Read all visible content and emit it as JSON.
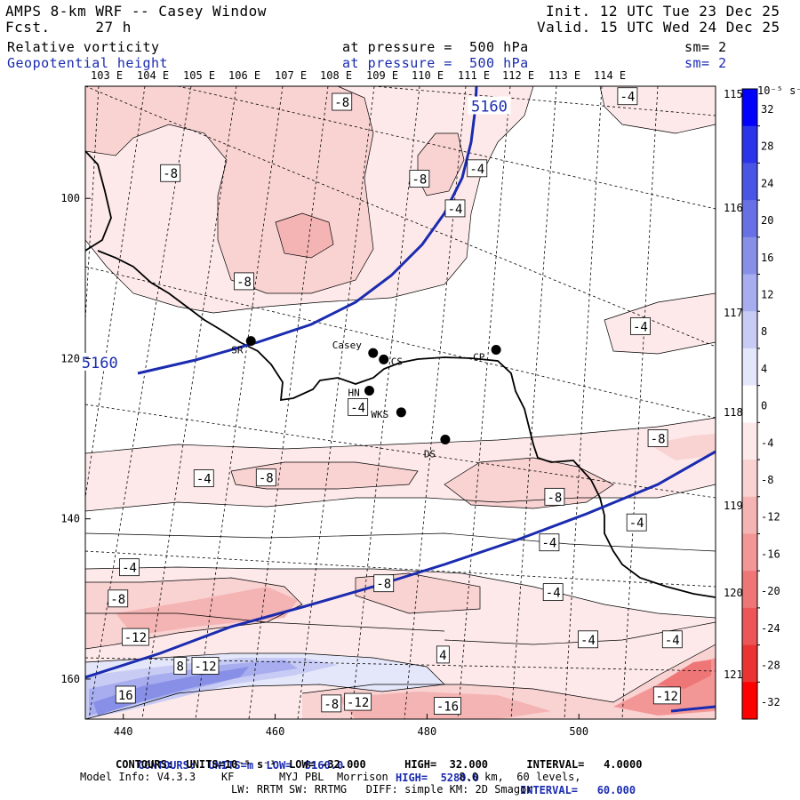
{
  "header": {
    "title": "AMPS 8-km WRF -- Casey Window",
    "forecast": "Fcst.     27 h",
    "init": "Init. 12 UTC Tue 23 Dec 25",
    "valid": "Valid. 15 UTC Wed 24 Dec 25",
    "field1_name": "Relative vorticity",
    "field1_level": "at pressure =  500 hPa",
    "field1_sm": "sm= 2",
    "field2_name": "Geopotential height",
    "field2_level": "at pressure =  500 hPa",
    "field2_sm": "sm= 2"
  },
  "longitude_labels": [
    "103 E",
    "104 E",
    "105 E",
    "106 E",
    "107 E",
    "108 E",
    "109 E",
    "110 E",
    "111 E",
    "112 E",
    "113 E",
    "114 E"
  ],
  "right_longitude_labels": [
    "115 E",
    "116 E",
    "117 E",
    "118 E",
    "119 E",
    "120 E",
    "121 E"
  ],
  "y_axis": {
    "ticks": [
      "100",
      "120",
      "140",
      "160"
    ],
    "range": [
      86,
      165
    ]
  },
  "x_axis": {
    "ticks": [
      "440",
      "460",
      "480",
      "500"
    ],
    "range": [
      435,
      518
    ]
  },
  "colorbar": {
    "unit_label": "10⁻⁵ s⁻¹",
    "ticks": [
      "32",
      "28",
      "24",
      "20",
      "16",
      "12",
      "8",
      "4",
      "0",
      "-4",
      "-8",
      "-12",
      "-16",
      "-20",
      "-24",
      "-28",
      "-32"
    ],
    "colors": [
      "#0000ff",
      "#2b34e8",
      "#4a55e6",
      "#6870e6",
      "#8790e6",
      "#a7adee",
      "#c8ccf4",
      "#e4e6fa",
      "#ffffff",
      "#fde9e9",
      "#f9d2d2",
      "#f5b4b4",
      "#f29696",
      "#ee7676",
      "#ec5656",
      "#ea3333",
      "#ff0000"
    ]
  },
  "stations": [
    {
      "name": "SR",
      "x": 456.8,
      "y": 117.8
    },
    {
      "name": "Casey",
      "x": 472.9,
      "y": 119.3
    },
    {
      "name": "CS",
      "x": 474.3,
      "y": 120.1
    },
    {
      "name": "CP",
      "x": 489.1,
      "y": 118.9
    },
    {
      "name": "HN",
      "x": 472.4,
      "y": 124.0
    },
    {
      "name": "WKS",
      "x": 476.6,
      "y": 126.7
    },
    {
      "name": "DS",
      "x": 482.4,
      "y": 130.1
    }
  ],
  "height_labels": [
    {
      "text": "5160",
      "x": 488.2,
      "y": 88.5
    },
    {
      "text": "5160",
      "x": 436.9,
      "y": 120.5
    }
  ],
  "vorticity_labels": [
    {
      "text": "-8",
      "x": 446.2,
      "y": 96.9
    },
    {
      "text": "-8",
      "x": 468.8,
      "y": 88.0
    },
    {
      "text": "-8",
      "x": 479.0,
      "y": 97.6
    },
    {
      "text": "-4",
      "x": 486.6,
      "y": 96.3
    },
    {
      "text": "-4",
      "x": 483.7,
      "y": 101.3
    },
    {
      "text": "-8",
      "x": 455.9,
      "y": 110.4
    },
    {
      "text": "-4",
      "x": 506.4,
      "y": 87.3
    },
    {
      "text": "-4",
      "x": 508.1,
      "y": 116.0
    },
    {
      "text": "-4",
      "x": 470.9,
      "y": 126.1
    },
    {
      "text": "-8",
      "x": 510.4,
      "y": 130.0
    },
    {
      "text": "-4",
      "x": 450.6,
      "y": 135.0
    },
    {
      "text": "-8",
      "x": 458.8,
      "y": 134.9
    },
    {
      "text": "-8",
      "x": 496.8,
      "y": 137.3
    },
    {
      "text": "-4",
      "x": 507.6,
      "y": 140.5
    },
    {
      "text": "-4",
      "x": 496.1,
      "y": 143.0
    },
    {
      "text": "-4",
      "x": 440.8,
      "y": 146.1
    },
    {
      "text": "-8",
      "x": 439.3,
      "y": 150.0
    },
    {
      "text": "-8",
      "x": 474.3,
      "y": 148.1
    },
    {
      "text": "-4",
      "x": 496.6,
      "y": 149.2
    },
    {
      "text": "-12",
      "x": 441.6,
      "y": 154.8
    },
    {
      "text": "-4",
      "x": 501.2,
      "y": 155.1
    },
    {
      "text": "-4",
      "x": 512.3,
      "y": 155.1
    },
    {
      "text": "4",
      "x": 482.1,
      "y": 157.0
    },
    {
      "text": "8",
      "x": 447.5,
      "y": 158.4
    },
    {
      "text": "-12",
      "x": 450.8,
      "y": 158.4
    },
    {
      "text": "16",
      "x": 440.3,
      "y": 162.0
    },
    {
      "text": "-8",
      "x": 467.4,
      "y": 163.1
    },
    {
      "text": "-12",
      "x": 470.9,
      "y": 162.9
    },
    {
      "text": "-16",
      "x": 482.7,
      "y": 163.4
    },
    {
      "text": "-12",
      "x": 511.6,
      "y": 162.1
    }
  ],
  "footer": {
    "line1_contours": "CONTOURS:  UNITS=m  LOW=  5160.0",
    "line1_high": "HIGH=  5280.0",
    "line1_interval": "INTERVAL=   60.000",
    "line2": "CONTOURS:  UNITS=10⁻⁵ s⁻¹  LOW= -32.000      HIGH=  32.000      INTERVAL=   4.0000",
    "line3": "Model Info: V4.3.3    KF       MYJ PBL  Morrison           8.0 km,  60 levels,",
    "line4": "LW: RRTM SW: RRTMG   DIFF: simple KM: 2D Smagor"
  }
}
